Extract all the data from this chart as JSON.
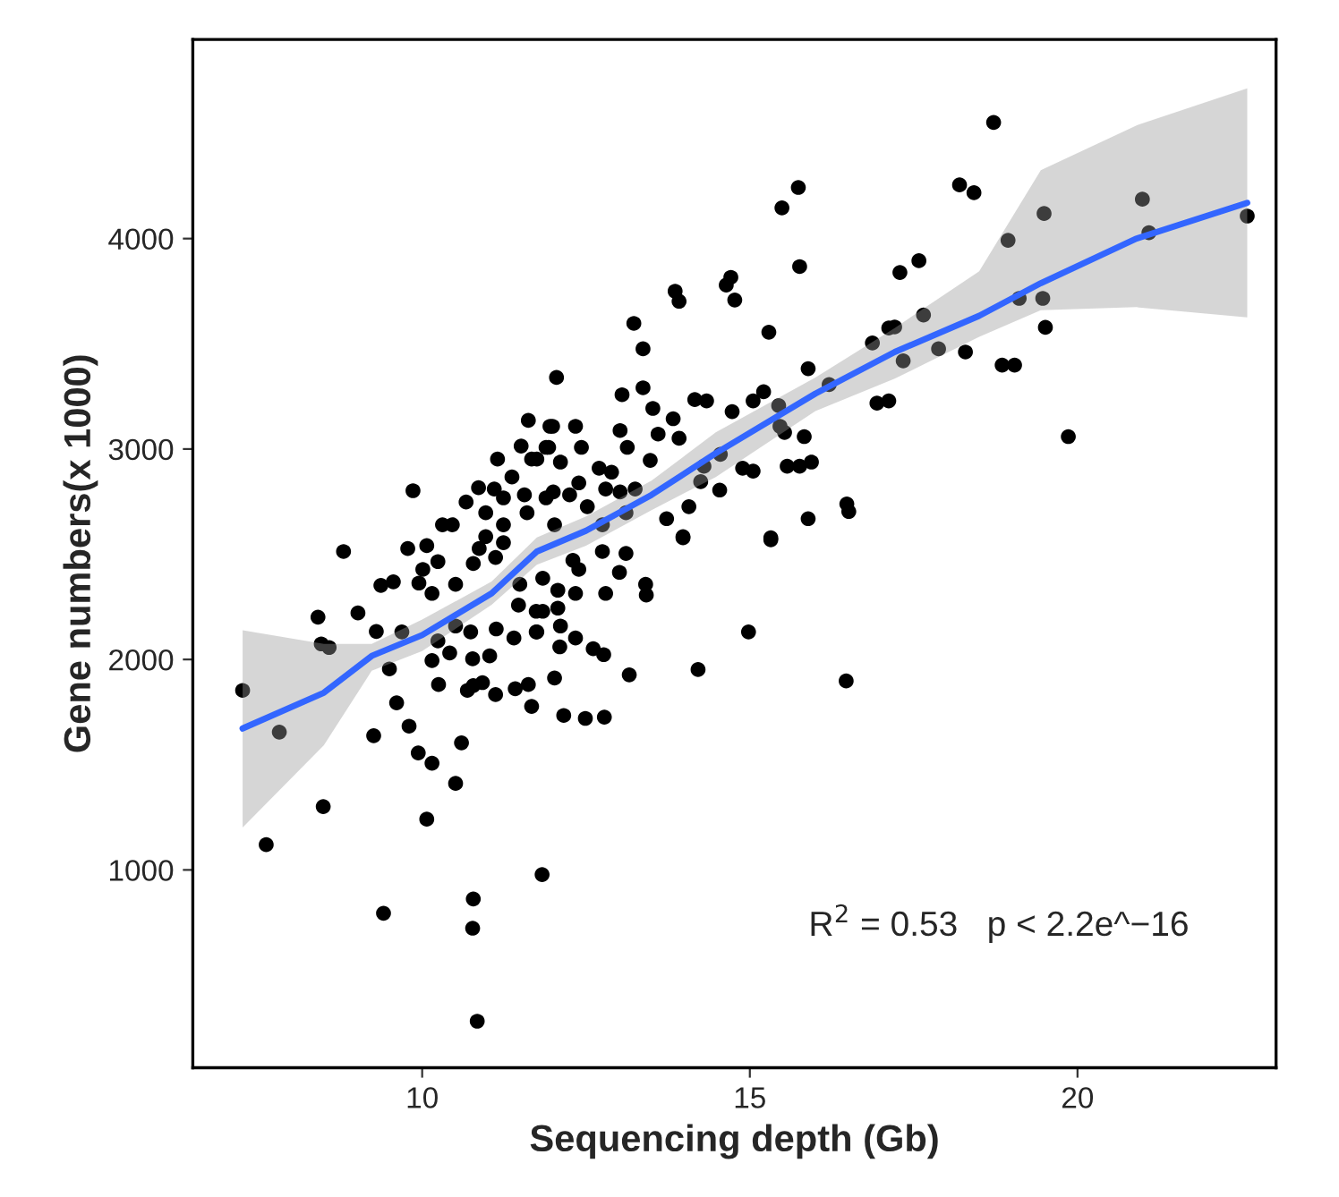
{
  "chart_data": {
    "type": "scatter",
    "xlabel": "Sequencing depth (Gb)",
    "ylabel": "Gene numbers(x 1000)",
    "xlim": [
      6.5,
      23.03
    ],
    "ylim": [
      60,
      4946
    ],
    "xticks": [
      10,
      15,
      20
    ],
    "yticks": [
      1000,
      2000,
      3000,
      4000
    ],
    "grid": false,
    "annotations": [
      "R$^{2}$ = 0.53   p < 2.2e^−16"
    ],
    "series": [
      {
        "color": "#000000",
        "marker": "circle",
        "x": [
          7.26,
          7.82,
          7.62,
          8.49,
          8.41,
          8.46,
          8.58,
          8.8,
          9.02,
          9.3,
          9.26,
          9.41,
          9.61,
          9.8,
          9.94,
          10.15,
          10.07,
          10.51,
          10.6,
          9.5,
          9.37,
          9.56,
          9.78,
          10.07,
          9.95,
          10.24,
          10.01,
          10.15,
          10.51,
          9.69,
          10.24,
          10.15,
          10.25,
          10.42,
          10.74,
          10.77,
          10.78,
          10.92,
          10.69,
          11.13,
          11.03,
          11.12,
          11.42,
          11.62,
          11.67,
          11.4,
          11.74,
          10.78,
          10.87,
          11.12,
          11.24,
          11.49,
          11.74,
          11.47,
          10.78,
          10.77,
          10.84,
          11.83,
          10.51,
          13.11,
          13.41,
          13.42,
          13.01,
          12.8,
          12.34,
          12.39,
          12.07,
          12.11,
          12.34,
          12.61,
          12.77,
          12.1,
          12.02,
          12.16,
          12.49,
          12.78,
          13.16,
          14.21,
          14.98,
          16.47,
          13.98,
          15.32,
          15.74,
          15.49,
          15.76,
          14.71,
          14.64,
          14.77,
          13.86,
          13.92,
          13.23,
          13.37,
          15.29,
          12.05,
          13.05,
          13.37,
          14.16,
          14.34,
          13.52,
          14.73,
          15.05,
          15.21,
          15.89,
          15.44,
          13.83,
          13.02,
          13.6,
          13.92,
          11.99,
          12.34,
          12.43,
          13.13,
          13.48,
          15.46,
          15.53,
          15.83,
          14.55,
          14.3,
          15.57,
          15.94,
          15.76,
          14.89,
          15.05,
          14.25,
          14.54,
          14.07,
          13.73,
          13.98,
          15.32,
          15.89,
          16.48,
          16.51,
          16.94,
          17.12,
          16.87,
          17.12,
          16.21,
          12.7,
          12.89,
          11.93,
          13.02,
          13.25,
          12.0,
          12.39,
          12.8,
          11.75,
          18.72,
          18.2,
          18.42,
          19.49,
          20.99,
          21.09,
          22.59,
          18.94,
          17.58,
          17.29,
          17.65,
          17.21,
          17.88,
          18.29,
          17.34,
          19.11,
          19.47,
          19.51,
          18.85,
          19.04,
          19.86,
          11.62,
          11.95,
          11.51,
          11.15,
          11.67,
          9.86,
          10.67,
          10.86,
          11.37,
          11.1,
          11.24,
          11.56,
          10.97,
          10.31,
          10.46,
          11.24,
          11.6,
          10.97,
          11.89,
          12.11,
          12.25,
          11.89,
          12.52,
          13.11,
          12.75,
          12.02,
          11.84,
          12.07,
          11.84,
          12.3,
          12.75,
          11.75
        ],
        "values": [
          1853,
          1655,
          1120,
          1301,
          2201,
          2074,
          2057,
          2513,
          2221,
          2133,
          1638,
          794,
          1794,
          1683,
          1556,
          1507,
          1241,
          1411,
          1604,
          1955,
          2352,
          2369,
          2527,
          2541,
          2363,
          2465,
          2428,
          2314,
          2357,
          2131,
          2088,
          1995,
          1881,
          2031,
          2131,
          2003,
          1876,
          1890,
          1853,
          2145,
          2017,
          1833,
          1861,
          1881,
          1777,
          2102,
          2131,
          2456,
          2527,
          2485,
          2555,
          2357,
          2229,
          2258,
          862,
          723,
          281,
          978,
          2159,
          2504,
          2357,
          2306,
          2414,
          2314,
          2314,
          2428,
          2244,
          2159,
          2102,
          2051,
          2023,
          2060,
          1912,
          1734,
          1720,
          1726,
          1927,
          1952,
          2131,
          1898,
          2578,
          2569,
          4243,
          4146,
          3867,
          3816,
          3779,
          3708,
          3750,
          3702,
          3597,
          3476,
          3555,
          3340,
          3258,
          3291,
          3235,
          3229,
          3193,
          3178,
          3229,
          3272,
          3382,
          3206,
          3144,
          3088,
          3071,
          3051,
          3108,
          3108,
          3008,
          3008,
          2946,
          3108,
          3079,
          3059,
          2975,
          2918,
          2918,
          2938,
          2918,
          2909,
          2895,
          2845,
          2805,
          2726,
          2669,
          2584,
          2578,
          2669,
          2739,
          2703,
          3218,
          3229,
          3504,
          3575,
          3306,
          2909,
          2890,
          3008,
          2796,
          2810,
          2796,
          2839,
          2810,
          2952,
          4552,
          4255,
          4218,
          4119,
          4187,
          4028,
          4107,
          3992,
          3895,
          3839,
          3637,
          3580,
          3476,
          3461,
          3419,
          3716,
          3716,
          3578,
          3399,
          3399,
          3059,
          3136,
          3108,
          3014,
          2952,
          2952,
          2802,
          2748,
          2816,
          2867,
          2810,
          2768,
          2782,
          2697,
          2640,
          2640,
          2640,
          2697,
          2584,
          3008,
          2938,
          2782,
          2768,
          2726,
          2697,
          2640,
          2640,
          2386,
          2329,
          2229,
          2471,
          2513,
          2131
        ]
      },
      {
        "type": "line",
        "color": "#3366ff",
        "x": [
          7.26,
          8.5,
          9.23,
          10,
          11.06,
          11.75,
          12.5,
          13.5,
          14.48,
          16,
          17.21,
          18.5,
          19.44,
          20.9,
          22.59
        ],
        "values": [
          1672,
          1842,
          2017,
          2116,
          2314,
          2513,
          2612,
          2782,
          2980,
          3263,
          3461,
          3633,
          3788,
          4000,
          4170
        ],
        "lower": [
          1201,
          1592,
          1946,
          2040,
          2260,
          2450,
          2540,
          2710,
          2867,
          3180,
          3334,
          3533,
          3660,
          3674,
          3626
        ],
        "upper": [
          2139,
          2074,
          2074,
          2190,
          2370,
          2580,
          2680,
          2850,
          3079,
          3340,
          3575,
          3845,
          4325,
          4538,
          4714
        ]
      }
    ]
  }
}
